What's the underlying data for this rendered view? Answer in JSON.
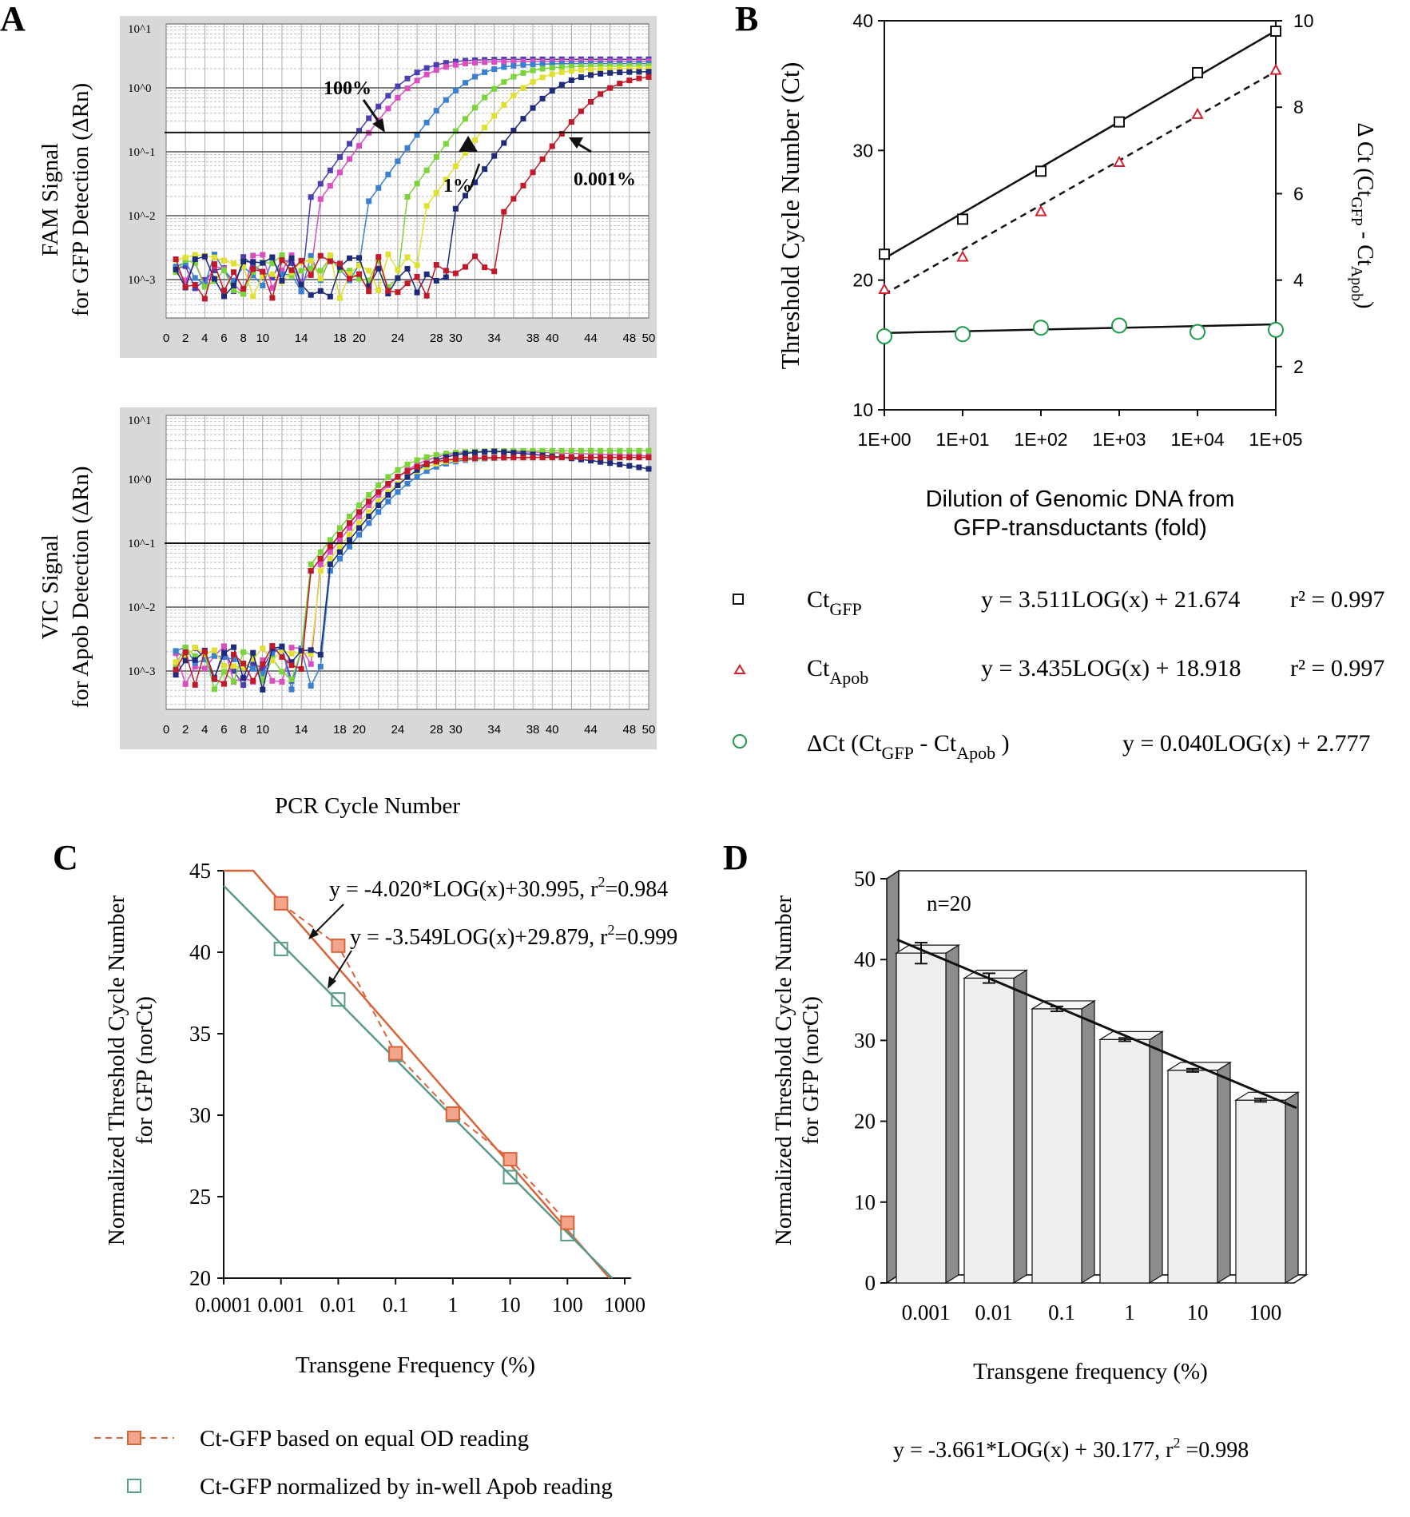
{
  "panels": {
    "A": "A",
    "B": "B",
    "C": "C",
    "D": "D"
  },
  "panelA": {
    "shared_xlabel": "PCR Cycle Number",
    "x_ticks": [
      "0",
      "2",
      "4",
      "6",
      "8",
      "10",
      "14",
      "18",
      "20",
      "24",
      "28",
      "30",
      "34",
      "38",
      "40",
      "44",
      "48",
      "50"
    ],
    "x_tick_values": [
      0,
      2,
      4,
      6,
      8,
      10,
      14,
      18,
      20,
      24,
      28,
      30,
      34,
      38,
      40,
      44,
      48,
      50
    ],
    "y_ticks": [
      "10^1",
      "10^0",
      "10^-1",
      "10^-2",
      "10^-3"
    ],
    "top": {
      "ylabel_line1": "FAM Signal",
      "ylabel_line2": "for GFP Detection (ΔRn)",
      "annotations": [
        "100%",
        "1%",
        "0.001%"
      ],
      "threshold": 0.2,
      "curve_midpoints": [
        22,
        27,
        30.5,
        33,
        36,
        41
      ],
      "series_colors": [
        "#4b3fb0",
        "#d94fc0",
        "#3a7fd0",
        "#7ad43a",
        "#e0e030",
        "#1e2a7a",
        "#c01a2a"
      ]
    },
    "bottom": {
      "ylabel_line1": "VIC Signal",
      "ylabel_line2": "for Apob Detection (ΔRn)",
      "threshold": 0.1
    }
  },
  "panelB": {
    "ylabel_left": "Threshold Cycle Number (Ct)",
    "ylabel_right": "Δ Ct (Ct",
    "ylabel_right_sub1": "GFP",
    "ylabel_right_mid": " - Ct",
    "ylabel_right_sub2": "Apob",
    "ylabel_right_end": ")",
    "xlabel_line1": "Dilution of Genomic DNA from",
    "xlabel_line2": "GFP-transductants (fold)",
    "x_ticks": [
      "1E+00",
      "1E+01",
      "1E+02",
      "1E+03",
      "1E+04",
      "1E+05"
    ],
    "y_left_ticks": [
      "10",
      "20",
      "30",
      "40"
    ],
    "y_right_ticks": [
      "2",
      "4",
      "6",
      "8",
      "10"
    ],
    "legend": [
      {
        "name": "Ct",
        "sub": "GFP",
        "equation": "y = 3.511LOG(x) + 21.674",
        "r2": "r² = 0.997"
      },
      {
        "name": "Ct",
        "sub": "Apob",
        "equation": "y = 3.435LOG(x) + 18.918",
        "r2": "r² = 0.997"
      },
      {
        "name": "ΔCt  (Ct",
        "sub": "GFP",
        "mid": " -  Ct",
        "sub2": "Apob",
        "end": " )",
        "equation": "y = 0.040LOG(x) + 2.777"
      }
    ],
    "colors": {
      "gfp": "#111111",
      "apob": "#d22030",
      "delta": "#1e9a4a"
    }
  },
  "panelC": {
    "ylabel_line1": "Normalized Threshold Cycle Number",
    "ylabel_line2": "for GFP (norCt)",
    "xlabel": "Transgene Frequency (%)",
    "x_ticks": [
      "0.0001",
      "0.001",
      "0.01",
      "0.1",
      "1",
      "10",
      "100",
      "1000"
    ],
    "y_ticks": [
      "20",
      "25",
      "30",
      "35",
      "40",
      "45"
    ],
    "eq1": "y = -4.020*LOG(x)+30.995, r",
    "eq1_end": "=0.984",
    "eq2": "y = -3.549LOG(x)+29.879, r",
    "eq2_end": "=0.999",
    "legend1": "Ct-GFP based on equal OD reading",
    "legend2": "Ct-GFP normalized by in-well Apob reading",
    "colors": {
      "od": "#d8643a",
      "apob": "#5a9a8a"
    }
  },
  "panelD": {
    "ylabel_line1": "Normalized Threshold Cycle Number",
    "ylabel_line2": "for GFP (norCt)",
    "xlabel": "Transgene frequency (%)",
    "annotation": "n=20",
    "equation": "y = -3.661*LOG(x) + 30.177,   r",
    "equation_end": " =0.998",
    "y_ticks": [
      "0",
      "10",
      "20",
      "30",
      "40",
      "50"
    ]
  },
  "chart_data": [
    {
      "type": "line",
      "title": "",
      "xlabel": "PCR Cycle Number",
      "ylabel": "FAM Signal for GFP Detection (ΔRn)",
      "y_scale": "log",
      "ylim": [
        0.001,
        10
      ],
      "xlim": [
        0,
        50
      ],
      "threshold": 0.2,
      "annotations": [
        "100%",
        "1%",
        "0.001%"
      ]
    },
    {
      "type": "line",
      "title": "",
      "xlabel": "PCR Cycle Number",
      "ylabel": "VIC Signal for Apob Detection (ΔRn)",
      "y_scale": "log",
      "ylim": [
        0.001,
        10
      ],
      "xlim": [
        0,
        50
      ],
      "threshold": 0.1
    },
    {
      "type": "scatter",
      "xlabel": "Dilution of Genomic DNA from GFP-transductants (fold)",
      "ylabel": "Threshold Cycle Number (Ct)",
      "ylabel_right": "Δ Ct (CtGFP - CtApob)",
      "x_scale": "log",
      "x": [
        1,
        10,
        100,
        1000,
        10000,
        100000
      ],
      "ylim": [
        10,
        40
      ],
      "ylim_right": [
        1,
        10
      ],
      "series": [
        {
          "name": "CtGFP",
          "values": [
            22.0,
            24.7,
            28.4,
            32.2,
            36.0,
            39.2
          ],
          "axis": "left",
          "marker": "square"
        },
        {
          "name": "CtApob",
          "values": [
            19.3,
            21.8,
            25.3,
            29.1,
            32.8,
            36.2
          ],
          "axis": "left",
          "marker": "triangle"
        },
        {
          "name": "ΔCt (CtGFP - CtApob)",
          "values": [
            2.7,
            2.75,
            2.9,
            2.95,
            2.8,
            2.85
          ],
          "axis": "right",
          "marker": "circle"
        }
      ],
      "fits": [
        {
          "series": "CtGFP",
          "equation": "y = 3.511LOG(x) + 21.674",
          "r2": 0.997
        },
        {
          "series": "CtApob",
          "equation": "y = 3.435LOG(x) + 18.918",
          "r2": 0.997
        },
        {
          "series": "ΔCt (CtGFP - CtApob)",
          "equation": "y = 0.040LOG(x) + 2.777"
        }
      ]
    },
    {
      "type": "scatter",
      "xlabel": "Transgene Frequency (%)",
      "ylabel": "Normalized Threshold Cycle Number for GFP (norCt)",
      "x_scale": "log",
      "x": [
        0.001,
        0.01,
        0.1,
        1,
        10,
        100
      ],
      "ylim": [
        20,
        45
      ],
      "series": [
        {
          "name": "Ct-GFP based on equal OD reading",
          "values": [
            43.0,
            40.4,
            33.8,
            30.1,
            27.3,
            23.4
          ]
        },
        {
          "name": "Ct-GFP normalized by in-well Apob reading",
          "values": [
            40.2,
            37.1,
            33.7,
            30.0,
            26.2,
            22.7
          ]
        }
      ],
      "fits": [
        {
          "equation": "y = -4.020*LOG(x)+30.995",
          "r2": 0.984
        },
        {
          "equation": "y = -3.549LOG(x)+29.879",
          "r2": 0.999
        }
      ]
    },
    {
      "type": "bar",
      "xlabel": "Transgene frequency (%)",
      "ylabel": "Normalized Threshold Cycle Number for GFP (norCt)",
      "categories": [
        "0.001",
        "0.01",
        "0.1",
        "1",
        "10",
        "100"
      ],
      "values": [
        40.8,
        37.7,
        33.9,
        30.1,
        26.3,
        22.6
      ],
      "errors": [
        1.3,
        0.6,
        0.3,
        0.2,
        0.2,
        0.2
      ],
      "ylim": [
        0,
        50
      ],
      "annotation": "n=20",
      "fit": {
        "equation": "y = -3.661*LOG(x) + 30.177",
        "r2": 0.998
      }
    }
  ]
}
